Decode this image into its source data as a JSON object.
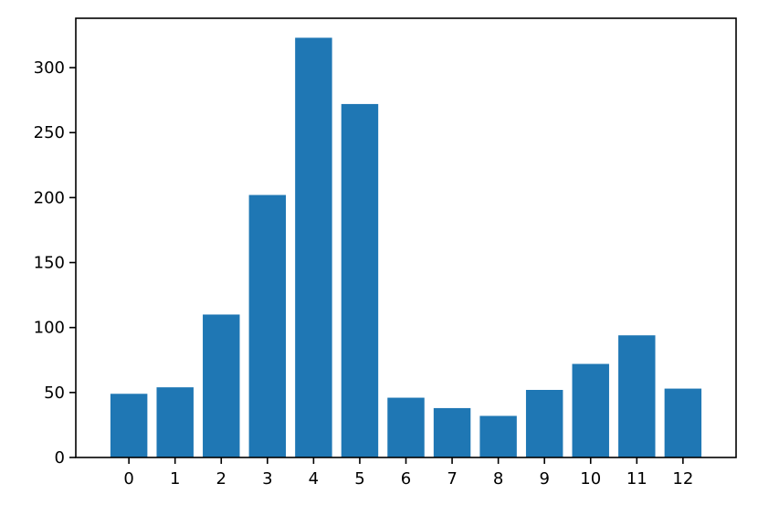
{
  "chart_data": {
    "type": "bar",
    "categories": [
      "0",
      "1",
      "2",
      "3",
      "4",
      "5",
      "6",
      "7",
      "8",
      "9",
      "10",
      "11",
      "12"
    ],
    "values": [
      49,
      54,
      110,
      202,
      323,
      272,
      46,
      38,
      32,
      52,
      72,
      94,
      53
    ],
    "title": "",
    "xlabel": "",
    "ylabel": "",
    "ylim": [
      0,
      338
    ],
    "yticks": [
      0,
      50,
      100,
      150,
      200,
      250,
      300
    ],
    "grid": false,
    "bar_color": "#1f77b4"
  }
}
